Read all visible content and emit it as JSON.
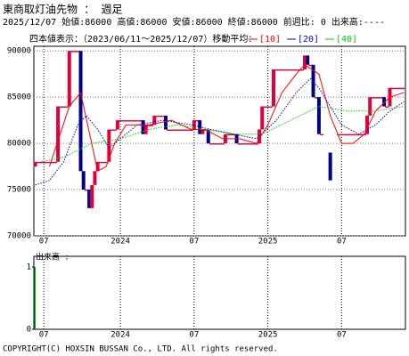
{
  "chart_data": {
    "type": "candlestick",
    "title": "東商取灯油先物 ： 週足",
    "info": "2025/12/07 始値:86000 高値:86000 安値:86000 終値:86000 前週比: 0 出来高:----",
    "range_label": "四本値表示：（2023/06/11～2025/12/07）移動平均：",
    "volume_label": "出来高 :",
    "footer": "COPYRIGHT(C) HOXSIN BUSSAN Co., LTD. All rights reserved.",
    "up_color": "#e0003c",
    "down_color": "#000088",
    "volume_color": "#00aa00",
    "categories": [
      null,
      null,
      null,
      "07",
      null,
      null,
      null,
      null,
      null,
      null,
      null,
      null,
      null,
      null,
      null,
      null,
      null,
      null,
      null,
      null,
      null,
      null,
      null,
      null,
      null,
      null,
      null,
      null,
      null,
      null,
      "2024",
      null,
      null,
      null,
      null,
      null,
      null,
      null,
      null,
      null,
      null,
      null,
      null,
      null,
      null,
      null,
      null,
      null,
      null,
      null,
      null,
      null,
      null,
      null,
      null,
      null,
      "07",
      null,
      null,
      null,
      null,
      null,
      null,
      null,
      null,
      null,
      null,
      null,
      null,
      null,
      null,
      null,
      null,
      null,
      null,
      null,
      null,
      null,
      null,
      null,
      null,
      null,
      "2025",
      null,
      null,
      null,
      null,
      null,
      null,
      null,
      null,
      null,
      null,
      null,
      null,
      null,
      null,
      null,
      null,
      null,
      null,
      null,
      null,
      null,
      null,
      null,
      null,
      null,
      "07",
      null,
      null,
      null,
      null,
      null,
      null,
      null,
      null,
      null,
      null,
      null,
      null,
      null,
      null,
      null,
      null,
      null,
      null,
      null,
      null,
      null,
      null
    ],
    "open": [
      77500,
      78000,
      78000,
      78000,
      78000,
      78000,
      78000,
      78000,
      78000,
      84000,
      84000,
      84000,
      84000,
      90000,
      90000,
      90000,
      90000,
      77000,
      75000,
      75000,
      73000,
      75500,
      77000,
      78000,
      78000,
      78000,
      78000,
      81500,
      81500,
      81500,
      82500,
      82500,
      82500,
      82500,
      82500,
      82500,
      82500,
      82500,
      82500,
      81000,
      82000,
      82000,
      82000,
      83000,
      83000,
      83000,
      83000,
      81500,
      81500,
      81500,
      81500,
      81500,
      81500,
      81500,
      81500,
      81500,
      81500,
      82500,
      82500,
      81000,
      81500,
      81500,
      80000,
      80000,
      80000,
      80000,
      80000,
      80000,
      81000,
      81000,
      81000,
      81000,
      80000,
      80000,
      80000,
      80000,
      80000,
      80000,
      80000,
      80000,
      81500,
      84000,
      84000,
      84000,
      84000,
      88000,
      88000,
      88000,
      88000,
      88000,
      88000,
      88000,
      88000,
      88000,
      88000,
      88000,
      89500,
      88500,
      88500,
      85000,
      85000,
      81000,
      null,
      null,
      79000,
      null,
      null,
      81000,
      81000,
      81000,
      81000,
      81000,
      81000,
      81000,
      81000,
      81000,
      81000,
      81000,
      83000,
      85000,
      85000,
      85000,
      85000,
      85000,
      84000,
      84000,
      86000,
      86000,
      86000,
      86000,
      86000
    ],
    "close": [
      78000,
      78000,
      78000,
      78000,
      78000,
      78000,
      78000,
      78000,
      84000,
      84000,
      84000,
      84000,
      90000,
      90000,
      90000,
      90000,
      77000,
      75000,
      75000,
      73000,
      75500,
      77000,
      78000,
      78000,
      78000,
      78000,
      81500,
      81500,
      81500,
      82500,
      82500,
      82500,
      82500,
      82500,
      82500,
      82500,
      82500,
      82500,
      81000,
      82000,
      82000,
      82000,
      83000,
      83000,
      83000,
      83000,
      81500,
      81500,
      81500,
      81500,
      81500,
      81500,
      81500,
      81500,
      81500,
      81500,
      82500,
      82500,
      81000,
      81500,
      81500,
      80000,
      80000,
      80000,
      80000,
      80000,
      80000,
      81000,
      81000,
      81000,
      81000,
      80000,
      80000,
      80000,
      80000,
      80000,
      80000,
      80000,
      80000,
      81500,
      84000,
      84000,
      84000,
      84000,
      88000,
      88000,
      88000,
      88000,
      88000,
      88000,
      88000,
      88000,
      88000,
      88000,
      88000,
      89500,
      88500,
      88500,
      85000,
      85000,
      81000,
      81000,
      null,
      null,
      76000,
      null,
      null,
      81000,
      81000,
      81000,
      81000,
      81000,
      81000,
      81000,
      81000,
      81000,
      81000,
      83000,
      85000,
      85000,
      85000,
      85000,
      85000,
      84000,
      84000,
      86000,
      86000,
      86000,
      86000,
      86000,
      86000
    ],
    "volume": [
      1,
      0,
      0,
      0,
      0,
      0,
      0,
      0,
      0,
      0,
      0,
      0,
      0,
      0,
      0,
      0,
      0,
      0,
      0,
      0,
      0,
      0,
      0,
      0,
      0,
      0,
      0,
      0,
      0,
      0,
      0,
      0,
      0,
      0,
      0,
      0,
      0,
      0,
      0,
      0,
      0,
      0,
      0,
      0,
      0,
      0,
      0,
      0,
      0,
      0,
      0,
      0,
      0,
      0,
      0,
      0,
      0,
      0,
      0,
      0,
      0,
      0,
      0,
      0,
      0,
      0,
      0,
      0,
      0,
      0,
      0,
      0,
      0,
      0,
      0,
      0,
      0,
      0,
      0,
      0,
      0,
      0,
      0,
      0,
      0,
      0,
      0,
      0,
      0,
      0,
      0,
      0,
      0,
      0,
      0,
      0,
      0,
      0,
      0,
      0,
      0,
      0,
      0,
      0,
      0,
      0,
      0,
      0,
      0,
      0,
      0,
      0,
      0,
      0,
      0,
      0,
      0,
      0,
      0,
      0,
      0,
      0,
      0,
      0,
      0,
      0,
      0,
      0,
      0,
      0,
      0
    ],
    "series": [
      {
        "name": "[10]",
        "color": "#ff0000",
        "style": "solid",
        "x": [
          5,
          12,
          16,
          22,
          25,
          28,
          32,
          40,
          48,
          55,
          60,
          66,
          72,
          78,
          82,
          87,
          92,
          95,
          100,
          104,
          108,
          112,
          116,
          120,
          125,
          130
        ],
        "values": [
          77500,
          84000,
          85500,
          77000,
          77500,
          80000,
          82000,
          82000,
          82500,
          81500,
          81500,
          80500,
          80500,
          80000,
          82000,
          85500,
          87500,
          88500,
          87500,
          83000,
          80000,
          80000,
          81000,
          83500,
          85000,
          85500
        ]
      },
      {
        "name": "[20]",
        "color": "#0000cc",
        "style": "dotted",
        "x": [
          0,
          5,
          10,
          15,
          18,
          22,
          26,
          30,
          36,
          45,
          55,
          62,
          70,
          78,
          85,
          92,
          97,
          100,
          104,
          108,
          114,
          120,
          125,
          130
        ],
        "values": [
          75500,
          76000,
          78000,
          82000,
          83000,
          81500,
          79500,
          80500,
          82000,
          82500,
          82000,
          81500,
          81000,
          80500,
          82500,
          85500,
          87000,
          86000,
          84000,
          82000,
          81000,
          82000,
          83500,
          84500
        ]
      },
      {
        "name": "[40]",
        "color": "#00cc00",
        "style": "dotted",
        "x": [
          2,
          10,
          20,
          30,
          40,
          50,
          60,
          70,
          80,
          90,
          100,
          110,
          120,
          130
        ],
        "values": [
          78000,
          78500,
          80000,
          80500,
          81500,
          82000,
          81500,
          81000,
          81000,
          82500,
          84000,
          83500,
          83500,
          84000
        ]
      }
    ],
    "ylim": [
      70000,
      90500
    ],
    "yticks": [
      70000,
      75000,
      80000,
      85000,
      90000
    ],
    "volume_ylim": [
      0,
      1
    ],
    "volume_yticks": [
      0,
      1
    ],
    "grid": true
  }
}
